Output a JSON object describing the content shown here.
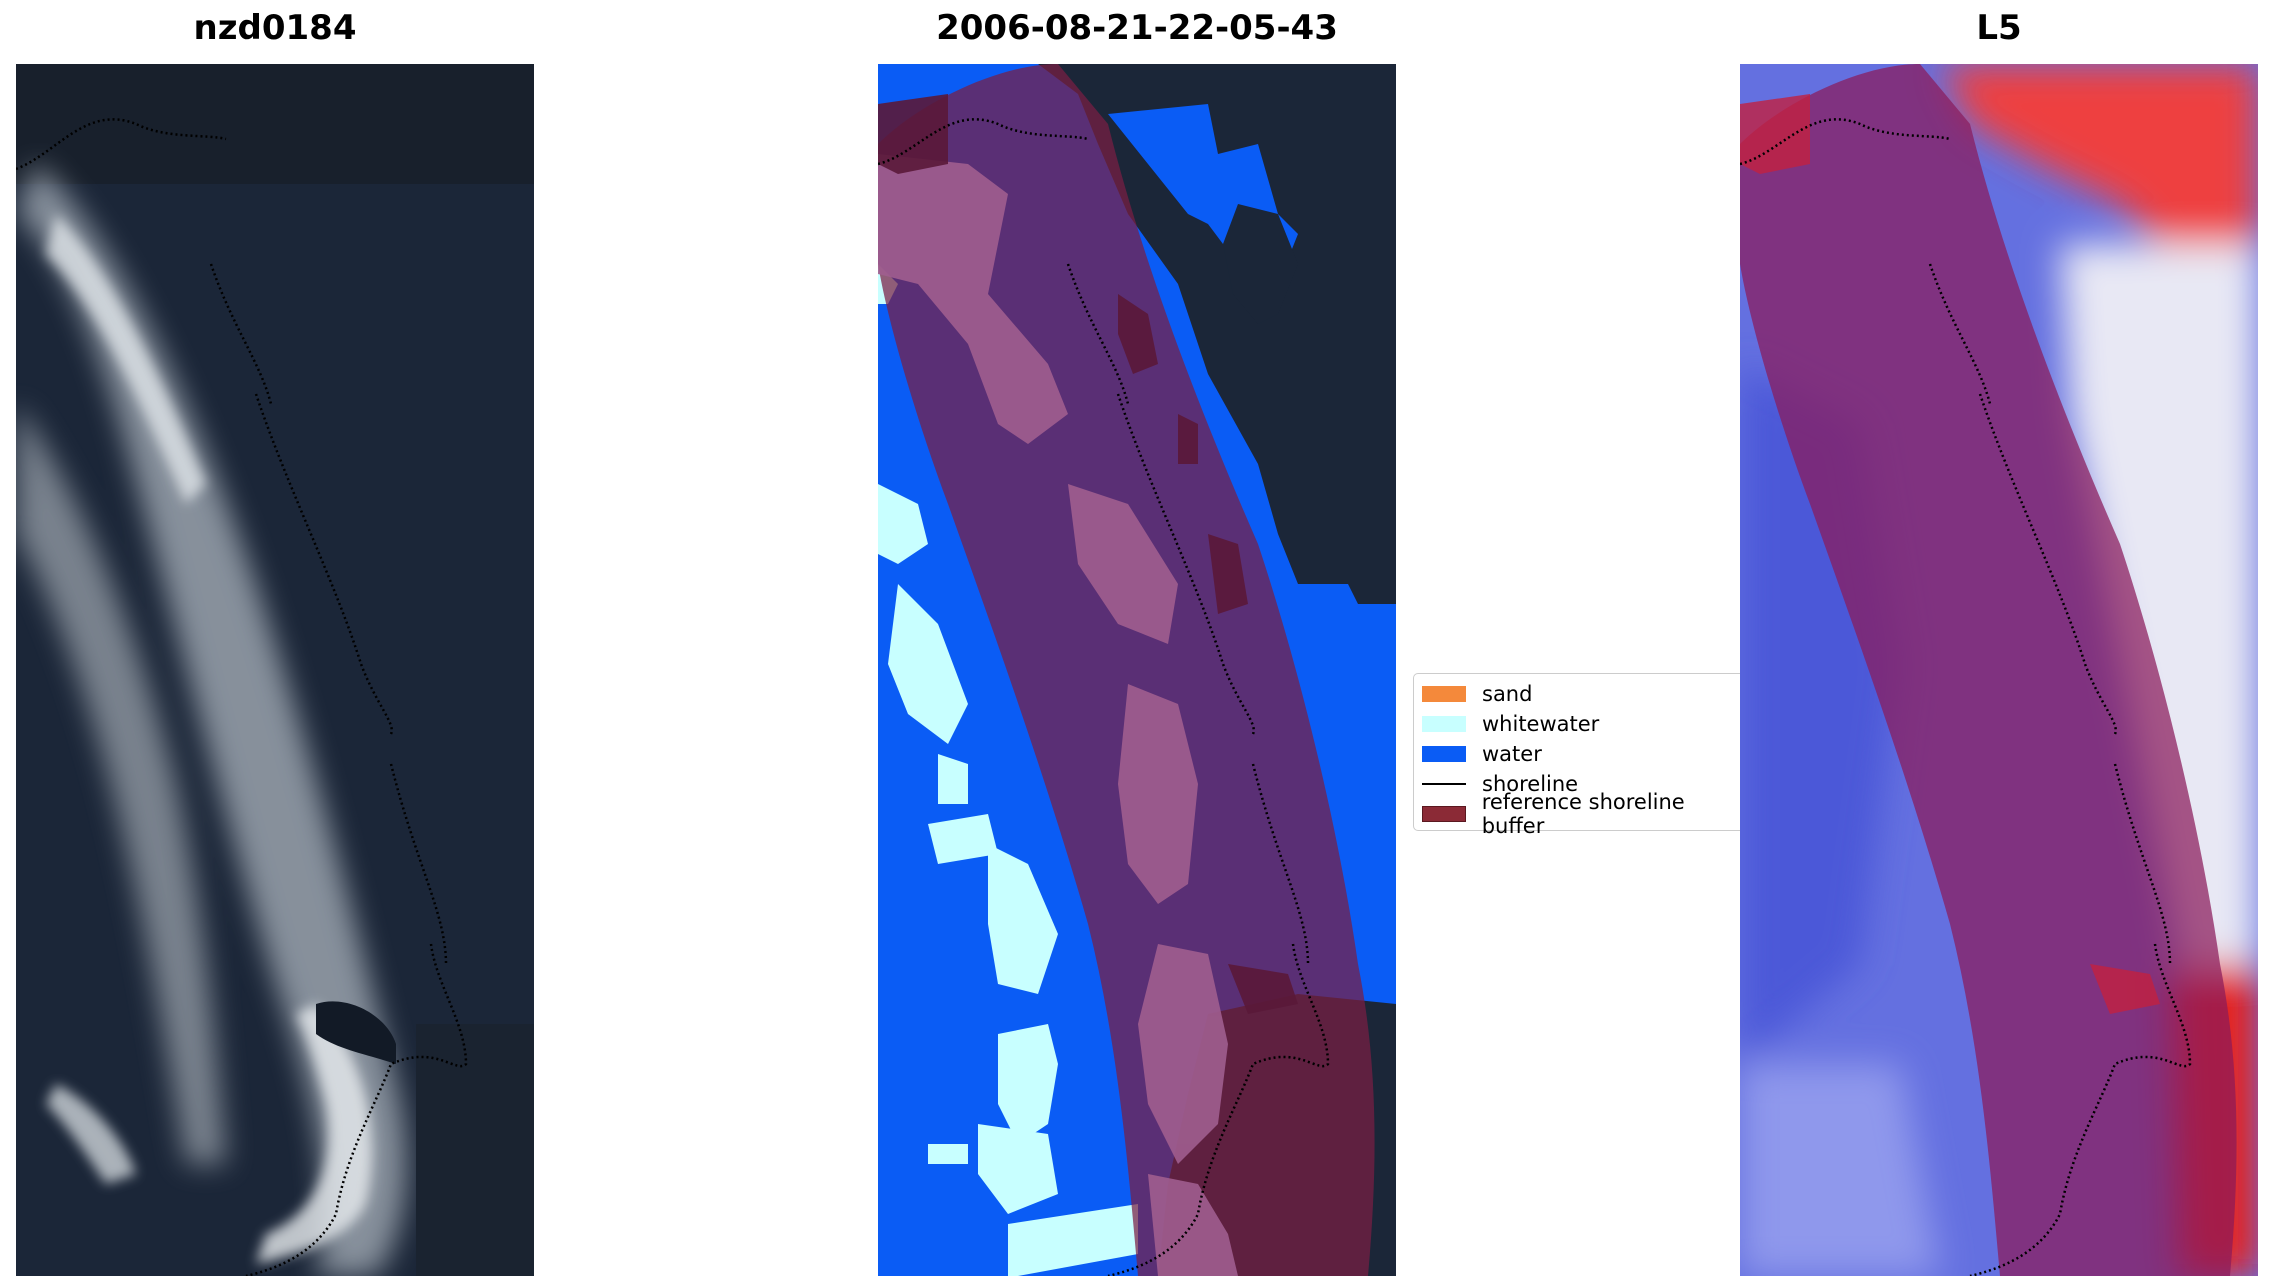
{
  "panels": [
    {
      "title": "nzd0184"
    },
    {
      "title": "2006-08-21-22-05-43"
    },
    {
      "title": "L5"
    }
  ],
  "legend": [
    {
      "label": "sand",
      "color": "#f4893b"
    },
    {
      "label": "whitewater",
      "color": "#c8ffff"
    },
    {
      "label": "water",
      "color": "#0a5cf5"
    },
    {
      "label": "shoreline",
      "color": "#000000"
    },
    {
      "label": "reference shoreline buffer",
      "color": "#8b2a36"
    }
  ],
  "colors": {
    "ocean_dark": "#1b2638",
    "water_class": "#0a5cf5",
    "buffer": "#7a1f44",
    "l5_blue": "#5a64dc",
    "l5_red": "#e8201e"
  }
}
